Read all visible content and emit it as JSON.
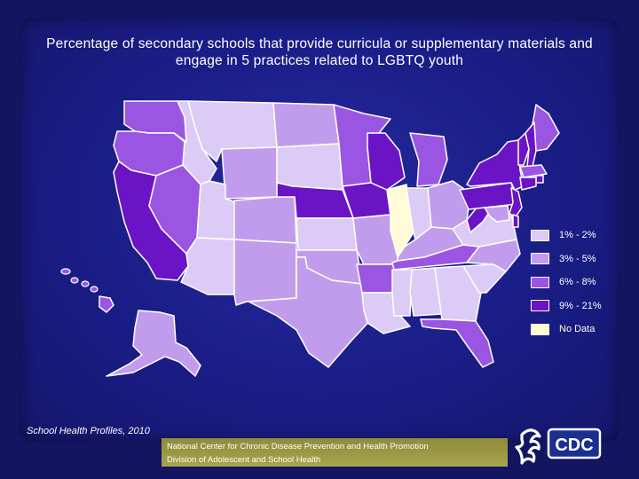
{
  "title": "Percentage of secondary schools that provide curricula or supplementary materials and engage in 5 practices related to LGBTQ youth",
  "source": "School Health Profiles, 2010",
  "footer": {
    "line1": "National Center for Chronic Disease Prevention and Health Promotion",
    "line2": "Division of Adolescent and School Health"
  },
  "logo": {
    "text": "CDC",
    "icon": "hhs-eagle-icon"
  },
  "colors": {
    "background": "#1a1d86",
    "c1": "#dccbf6",
    "c2": "#c29cec",
    "c3": "#9a56e2",
    "c4": "#6a14c6",
    "nodata": "#fffbd6",
    "state_border": "#ffffff"
  },
  "legend": [
    {
      "label": "1% - 2%",
      "color": "#dccbf6"
    },
    {
      "label": "3% - 5%",
      "color": "#c29cec"
    },
    {
      "label": "6% - 8%",
      "color": "#9a56e2"
    },
    {
      "label": "9% - 21%",
      "color": "#6a14c6"
    },
    {
      "label": "No Data",
      "color": "#fffbd6"
    }
  ],
  "map_data": {
    "type": "choropleth",
    "region": "United States",
    "states": {
      "WA": "6% - 8%",
      "OR": "6% - 8%",
      "CA": "9% - 21%",
      "NV": "6% - 8%",
      "ID": "1% - 2%",
      "MT": "1% - 2%",
      "WY": "3% - 5%",
      "UT": "1% - 2%",
      "AZ": "1% - 2%",
      "CO": "3% - 5%",
      "NM": "3% - 5%",
      "ND": "3% - 5%",
      "SD": "1% - 2%",
      "NE": "9% - 21%",
      "KS": "1% - 2%",
      "OK": "3% - 5%",
      "TX": "3% - 5%",
      "MN": "6% - 8%",
      "IA": "9% - 21%",
      "MO": "3% - 5%",
      "AR": "6% - 8%",
      "LA": "1% - 2%",
      "WI": "9% - 21%",
      "IL": "No Data",
      "MI": "6% - 8%",
      "IN": "1% - 2%",
      "OH": "3% - 5%",
      "KY": "3% - 5%",
      "TN": "6% - 8%",
      "MS": "1% - 2%",
      "AL": "1% - 2%",
      "GA": "1% - 2%",
      "FL": "6% - 8%",
      "SC": "1% - 2%",
      "NC": "3% - 5%",
      "VA": "1% - 2%",
      "WV": "9% - 21%",
      "PA": "9% - 21%",
      "NY": "9% - 21%",
      "ME": "6% - 8%",
      "VT": "9% - 21%",
      "NH": "9% - 21%",
      "MA": "6% - 8%",
      "RI": "9% - 21%",
      "CT": "9% - 21%",
      "NJ": "9% - 21%",
      "DE": "9% - 21%",
      "MD": "3% - 5%",
      "AK": "3% - 5%",
      "HI": "6% - 8%"
    }
  }
}
